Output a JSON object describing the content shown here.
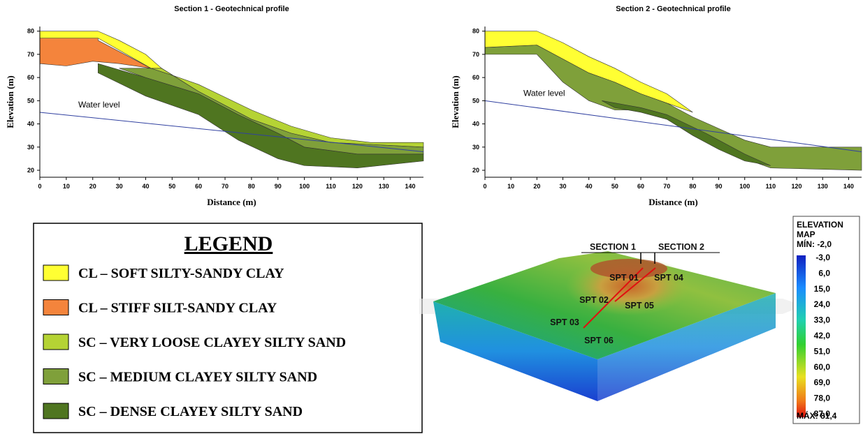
{
  "chart_data": [
    {
      "type": "profile",
      "title": "Section 1 - Geotechnical profile",
      "xlabel": "Distance (m)",
      "ylabel": "Elevation (m)",
      "xlim": [
        0,
        145
      ],
      "ylim": [
        17,
        82
      ],
      "xticks": [
        0,
        10,
        20,
        30,
        40,
        50,
        60,
        70,
        80,
        90,
        100,
        110,
        120,
        130,
        140
      ],
      "yticks": [
        20,
        30,
        40,
        50,
        60,
        70,
        80
      ],
      "layers": [
        {
          "color": "#4f7520",
          "x": [
            22,
            40,
            60,
            75,
            90,
            100,
            120,
            145,
            145,
            120,
            100,
            90,
            75,
            60,
            40,
            22
          ],
          "y": [
            66,
            60,
            53,
            44,
            36,
            30,
            27,
            27,
            24,
            21,
            22,
            25,
            33,
            44,
            52,
            62
          ]
        },
        {
          "color": "#7fa03a",
          "x": [
            46,
            60,
            80,
            95,
            110,
            145,
            145,
            120,
            100,
            90,
            75,
            60,
            40,
            30
          ],
          "y": [
            64,
            54,
            42,
            36,
            32,
            30,
            27,
            27,
            30,
            36,
            44,
            53,
            60,
            64
          ]
        },
        {
          "color": "#b5d334",
          "x": [
            42,
            50,
            60,
            80,
            95,
            110,
            125,
            145,
            145,
            110,
            95,
            80,
            60,
            46
          ],
          "y": [
            64,
            61,
            57,
            46,
            39,
            34,
            32,
            32,
            30,
            32,
            36,
            42,
            54,
            64
          ]
        },
        {
          "color": "#f4843c",
          "x": [
            0,
            22,
            22,
            42,
            30,
            20,
            10,
            0
          ],
          "y": [
            77,
            77,
            76,
            64,
            66,
            67,
            65,
            66
          ]
        },
        {
          "color": "#ffff33",
          "x": [
            0,
            22,
            30,
            40,
            46,
            42,
            22,
            0
          ],
          "y": [
            80,
            80,
            76,
            70,
            64,
            64,
            77,
            77
          ]
        }
      ],
      "water": {
        "label": "Water level",
        "x": [
          0,
          145
        ],
        "y": [
          45,
          28
        ]
      }
    },
    {
      "type": "profile",
      "title": "Section 2 - Geotechnical profile",
      "xlabel": "Distance (m)",
      "ylabel": "Elevation (m)",
      "xlim": [
        0,
        145
      ],
      "ylim": [
        17,
        82
      ],
      "xticks": [
        0,
        10,
        20,
        30,
        40,
        50,
        60,
        70,
        80,
        90,
        100,
        110,
        120,
        130,
        140
      ],
      "yticks": [
        20,
        30,
        40,
        50,
        60,
        70,
        80
      ],
      "layers": [
        {
          "color": "#7fa03a",
          "x": [
            0,
            20,
            30,
            40,
            50,
            60,
            70,
            80,
            90,
            100,
            110,
            130,
            145,
            145,
            110,
            100,
            90,
            80,
            70,
            60,
            50,
            40,
            30,
            20,
            0
          ],
          "y": [
            73,
            74,
            68,
            62,
            58,
            53,
            49,
            43,
            38,
            33,
            30,
            30,
            30,
            20,
            21,
            25,
            30,
            36,
            42,
            46,
            46,
            50,
            58,
            70,
            70
          ]
        },
        {
          "color": "#4f7520",
          "x": [
            45,
            60,
            70,
            85,
            100,
            110,
            100,
            90,
            80,
            70,
            60,
            50
          ],
          "y": [
            50,
            47,
            44,
            36,
            27,
            22,
            24,
            29,
            35,
            42,
            45,
            47
          ]
        },
        {
          "color": "#ffff33",
          "x": [
            0,
            20,
            30,
            40,
            50,
            60,
            70,
            80,
            70,
            60,
            50,
            40,
            30,
            20,
            0
          ],
          "y": [
            80,
            80,
            75,
            69,
            64,
            58,
            53,
            45,
            49,
            53,
            58,
            62,
            68,
            74,
            73
          ]
        }
      ],
      "water": {
        "label": "Water level",
        "x": [
          0,
          145
        ],
        "y": [
          50,
          28
        ]
      }
    }
  ],
  "legend": {
    "title": "LEGEND",
    "items": [
      {
        "label": "CL – SOFT SILTY-SANDY CLAY",
        "color": "#ffff33"
      },
      {
        "label": "CL – STIFF SILT-SANDY CLAY",
        "color": "#f4843c"
      },
      {
        "label": "SC – VERY LOOSE CLAYEY SILTY SAND",
        "color": "#b5d334"
      },
      {
        "label": "SC – MEDIUM CLAYEY SILTY SAND",
        "color": "#7fa03a"
      },
      {
        "label": "SC – DENSE CLAYEY SILTY SAND",
        "color": "#4f7520"
      }
    ]
  },
  "map": {
    "sections": [
      "SECTION 1",
      "SECTION 2"
    ],
    "points": [
      "SPT 01",
      "SPT 04",
      "SPT 02",
      "SPT 05",
      "SPT 03",
      "SPT 06"
    ]
  },
  "colorbar": {
    "title": [
      "ELEVATION",
      "MAP"
    ],
    "min_label": "MÍN: -2,0",
    "max_label": "MÁX: 81,4",
    "ticks": [
      "-3,0",
      "6,0",
      "15,0",
      "24,0",
      "33,0",
      "42,0",
      "51,0",
      "60,0",
      "69,0",
      "78,0",
      "87,0"
    ]
  }
}
